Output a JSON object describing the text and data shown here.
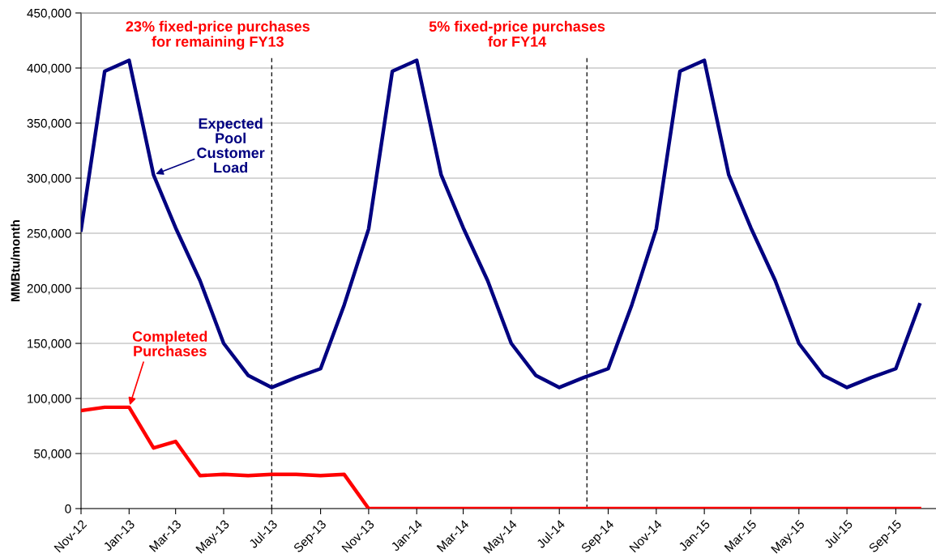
{
  "chart_data": {
    "type": "line",
    "ylabel": "MMBtu/month",
    "x": [
      "2012-11",
      "2012-12",
      "2013-01",
      "2013-02",
      "2013-03",
      "2013-04",
      "2013-05",
      "2013-06",
      "2013-07",
      "2013-08",
      "2013-09",
      "2013-10",
      "2013-11",
      "2013-12",
      "2014-01",
      "2014-02",
      "2014-03",
      "2014-04",
      "2014-05",
      "2014-06",
      "2014-07",
      "2014-08",
      "2014-09",
      "2014-10",
      "2014-11",
      "2014-12",
      "2015-01",
      "2015-02",
      "2015-03",
      "2015-04",
      "2015-05",
      "2015-06",
      "2015-07",
      "2015-08",
      "2015-09",
      "2015-10"
    ],
    "series": [
      {
        "color": "#000080",
        "values": [
          253000,
          397000,
          407000,
          303000,
          255000,
          207000,
          150000,
          121000,
          110000,
          119000,
          127000,
          185000,
          254000,
          397000,
          407000,
          303000,
          255000,
          207000,
          150000,
          121000,
          110000,
          119000,
          127000,
          185000,
          254000,
          397000,
          407000,
          303000,
          255000,
          207000,
          150000,
          121000,
          110000,
          119000,
          127000,
          185000
        ]
      },
      {
        "color": "#ff0000",
        "values": [
          89000,
          92000,
          92000,
          55000,
          61000,
          30000,
          31000,
          30000,
          31000,
          31000,
          30000,
          31000,
          0,
          0,
          0,
          0,
          0,
          0,
          0,
          0,
          0,
          0,
          0,
          0,
          0,
          0,
          0,
          0,
          0,
          0,
          0,
          0,
          0,
          0,
          0,
          0
        ]
      }
    ],
    "xlim": [
      "2012-11-01",
      "2015-10-22"
    ],
    "xticks": [
      {
        "value": "2012-11",
        "label": "Nov-12"
      },
      {
        "value": "2013-01",
        "label": "Jan-13"
      },
      {
        "value": "2013-03",
        "label": "Mar-13"
      },
      {
        "value": "2013-05",
        "label": "May-13"
      },
      {
        "value": "2013-07",
        "label": "Jul-13"
      },
      {
        "value": "2013-09",
        "label": "Sep-13"
      },
      {
        "value": "2013-11",
        "label": "Nov-13"
      },
      {
        "value": "2014-01",
        "label": "Jan-14"
      },
      {
        "value": "2014-03",
        "label": "Mar-14"
      },
      {
        "value": "2014-05",
        "label": "May-14"
      },
      {
        "value": "2014-07",
        "label": "Jul-14"
      },
      {
        "value": "2014-09",
        "label": "Sep-14"
      },
      {
        "value": "2014-11",
        "label": "Nov-14"
      },
      {
        "value": "2015-01",
        "label": "Jan-15"
      },
      {
        "value": "2015-03",
        "label": "Mar-15"
      },
      {
        "value": "2015-05",
        "label": "May-15"
      },
      {
        "value": "2015-07",
        "label": "Jul-15"
      },
      {
        "value": "2015-09",
        "label": "Sep-15"
      }
    ],
    "ylim": [
      0,
      450000
    ],
    "yticks": [
      {
        "value": 0,
        "label": "0"
      },
      {
        "value": 50000,
        "label": "50,000"
      },
      {
        "value": 100000,
        "label": "100,000"
      },
      {
        "value": 150000,
        "label": "150,000"
      },
      {
        "value": 200000,
        "label": "200,000"
      },
      {
        "value": 250000,
        "label": "250,000"
      },
      {
        "value": 300000,
        "label": "300,000"
      },
      {
        "value": 350000,
        "label": "350,000"
      },
      {
        "value": 400000,
        "label": "400,000"
      },
      {
        "value": 450000,
        "label": "450,000"
      }
    ],
    "grid": "y",
    "marker": "none",
    "line_style": "solid",
    "ref_lines": [
      {
        "axis": "x",
        "value": "2013-07",
        "color": "#000000",
        "line_style": "dashed"
      },
      {
        "axis": "x",
        "value": "2014-08-05",
        "color": "#000000",
        "line_style": "dashed"
      }
    ],
    "annotations": [
      "23% fixed-price purchases\nfor remaining FY13",
      "5% fixed-price purchases\nfor FY14",
      {
        "text": "Expected\nPool\nCustomer\nLoad",
        "x": "2013-02",
        "y": 303000
      },
      {
        "text": "Completed\nPurchases",
        "x": "2013-01",
        "y": 92000
      }
    ]
  }
}
